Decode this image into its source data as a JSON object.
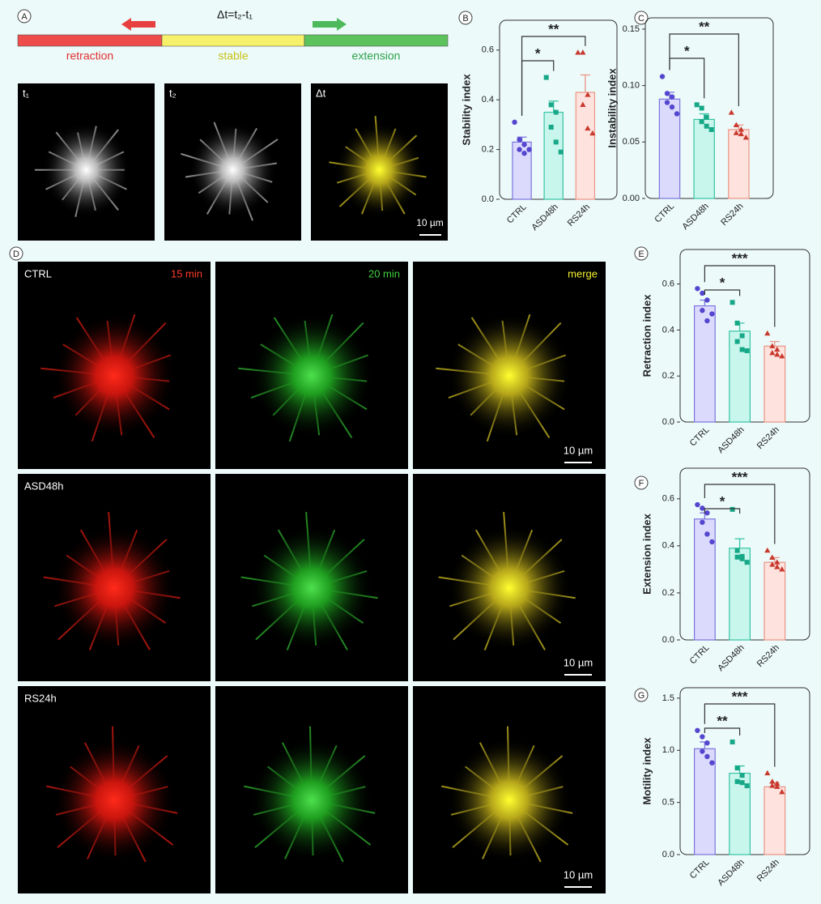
{
  "panel_letters": [
    "A",
    "B",
    "C",
    "D",
    "E",
    "F",
    "G"
  ],
  "panel_a": {
    "formula": "Δt=t₂-t₁",
    "states": [
      "retraction",
      "stable",
      "extension"
    ],
    "frames": [
      "t₁",
      "t₂",
      "Δt"
    ],
    "scale_bar": "10 µm"
  },
  "panel_d": {
    "rows": [
      "CTRL",
      "ASD48h",
      "RS24h"
    ],
    "channels": [
      "15 min",
      "20 min",
      "merge"
    ],
    "scale_bar": "10 µm"
  },
  "chart_data": [
    {
      "type": "bar",
      "ylabel": "Stability index",
      "categories": [
        "CTRL",
        "ASD48h",
        "RS24h"
      ],
      "values": [
        0.23,
        0.35,
        0.43
      ],
      "errors": [
        0.02,
        0.045,
        0.07
      ],
      "points": [
        [
          0.31,
          0.24,
          0.22,
          0.2,
          0.185,
          0.2
        ],
        [
          0.49,
          0.38,
          0.35,
          0.29,
          0.23,
          0.19
        ],
        [
          0.59,
          0.59,
          0.42,
          0.38,
          0.285,
          0.265
        ]
      ],
      "fill_colors": [
        "#dcdafc",
        "#c9f6ec",
        "#fde2dd"
      ],
      "edge_colors": [
        "#7b74dd",
        "#35c4a4",
        "#ec9484"
      ],
      "point_colors": [
        "#5546cf",
        "#17a887",
        "#c8382d"
      ],
      "markers": [
        "circle",
        "square",
        "triangle"
      ],
      "ylim": [
        0,
        0.72
      ],
      "yticks": [
        {
          "value": 0,
          "label": "0.0"
        },
        0.2,
        0.4,
        0.6
      ],
      "significance": [
        {
          "label": "*",
          "between": [
            "CTRL",
            "ASD48h"
          ]
        },
        {
          "label": "**",
          "between": [
            "CTRL",
            "RS24h"
          ]
        }
      ]
    },
    {
      "type": "bar",
      "ylabel": "Instability index",
      "categories": [
        "CTRL",
        "ASD48h",
        "RS24h"
      ],
      "values": [
        0.088,
        0.07,
        0.061
      ],
      "errors": [
        0.006,
        0.005,
        0.004
      ],
      "points": [
        [
          0.108,
          0.093,
          0.09,
          0.085,
          0.081,
          0.075
        ],
        [
          0.083,
          0.08,
          0.072,
          0.068,
          0.064,
          0.061
        ],
        [
          0.076,
          0.065,
          0.061,
          0.058,
          0.057,
          0.054
        ]
      ],
      "fill_colors": [
        "#dcdafc",
        "#c9f6ec",
        "#fde2dd"
      ],
      "edge_colors": [
        "#7b74dd",
        "#35c4a4",
        "#ec9484"
      ],
      "point_colors": [
        "#5546cf",
        "#17a887",
        "#c8382d"
      ],
      "markers": [
        "circle",
        "square",
        "triangle"
      ],
      "ylim": [
        0,
        0.16
      ],
      "yticks": [
        {
          "value": 0,
          "label": "0.00"
        },
        0.05,
        {
          "value": 0.1,
          "label": "0.10"
        },
        0.15
      ],
      "significance": [
        {
          "label": "*",
          "between": [
            "CTRL",
            "ASD48h"
          ]
        },
        {
          "label": "**",
          "between": [
            "CTRL",
            "RS24h"
          ]
        }
      ]
    },
    {
      "type": "bar",
      "ylabel": "Retraction index",
      "categories": [
        "CTRL",
        "ASD48h",
        "RS24h"
      ],
      "values": [
        0.505,
        0.395,
        0.33
      ],
      "errors": [
        0.025,
        0.035,
        0.02
      ],
      "points": [
        [
          0.58,
          0.56,
          0.53,
          0.485,
          0.44,
          0.47
        ],
        [
          0.52,
          0.43,
          0.375,
          0.35,
          0.315,
          0.31
        ],
        [
          0.385,
          0.33,
          0.315,
          0.3,
          0.293,
          0.286
        ]
      ],
      "fill_colors": [
        "#dcdafc",
        "#c9f6ec",
        "#fde2dd"
      ],
      "edge_colors": [
        "#7b74dd",
        "#35c4a4",
        "#ec9484"
      ],
      "point_colors": [
        "#5546cf",
        "#17a887",
        "#c8382d"
      ],
      "markers": [
        "circle",
        "square",
        "triangle"
      ],
      "ylim": [
        0,
        0.75
      ],
      "yticks": [
        {
          "value": 0,
          "label": "0.0"
        },
        0.2,
        0.4,
        0.6
      ],
      "significance": [
        {
          "label": "*",
          "between": [
            "CTRL",
            "ASD48h"
          ]
        },
        {
          "label": "***",
          "between": [
            "CTRL",
            "RS24h"
          ]
        }
      ]
    },
    {
      "type": "bar",
      "ylabel": "Extension index",
      "categories": [
        "CTRL",
        "ASD48h",
        "RS24h"
      ],
      "values": [
        0.514,
        0.39,
        0.33
      ],
      "errors": [
        0.026,
        0.04,
        0.02
      ],
      "points": [
        [
          0.575,
          0.56,
          0.54,
          0.5,
          0.45,
          0.417
        ],
        [
          0.555,
          0.38,
          0.355,
          0.352,
          0.345,
          0.33
        ],
        [
          0.38,
          0.35,
          0.33,
          0.32,
          0.31,
          0.3
        ]
      ],
      "fill_colors": [
        "#dcdafc",
        "#c9f6ec",
        "#fde2dd"
      ],
      "edge_colors": [
        "#7b74dd",
        "#35c4a4",
        "#ec9484"
      ],
      "point_colors": [
        "#5546cf",
        "#17a887",
        "#c8382d"
      ],
      "markers": [
        "circle",
        "square",
        "triangle"
      ],
      "ylim": [
        0,
        0.73
      ],
      "yticks": [
        {
          "value": 0,
          "label": "0.0"
        },
        0.2,
        0.4,
        0.6
      ],
      "significance": [
        {
          "label": "*",
          "between": [
            "CTRL",
            "ASD48h"
          ]
        },
        {
          "label": "***",
          "between": [
            "CTRL",
            "RS24h"
          ]
        }
      ]
    },
    {
      "type": "bar",
      "ylabel": "Motility index",
      "categories": [
        "CTRL",
        "ASD48h",
        "RS24h"
      ],
      "values": [
        1.015,
        0.78,
        0.65
      ],
      "errors": [
        0.065,
        0.07,
        0.04
      ],
      "points": [
        [
          1.19,
          1.13,
          1.07,
          0.99,
          0.94,
          0.88
        ],
        [
          1.08,
          0.83,
          0.76,
          0.7,
          0.69,
          0.66
        ],
        [
          0.78,
          0.7,
          0.68,
          0.66,
          0.65,
          0.6
        ]
      ],
      "fill_colors": [
        "#dcdafc",
        "#c9f6ec",
        "#fde2dd"
      ],
      "edge_colors": [
        "#7b74dd",
        "#35c4a4",
        "#ec9484"
      ],
      "point_colors": [
        "#5546cf",
        "#17a887",
        "#c8382d"
      ],
      "markers": [
        "circle",
        "square",
        "triangle"
      ],
      "ylim": [
        0,
        1.6
      ],
      "yticks": [
        {
          "value": 0,
          "label": "0.0"
        },
        0.5,
        {
          "value": 1,
          "label": "1.0"
        },
        1.5
      ],
      "significance": [
        {
          "label": "**",
          "between": [
            "CTRL",
            "ASD48h"
          ]
        },
        {
          "label": "***",
          "between": [
            "CTRL",
            "RS24h"
          ]
        }
      ]
    }
  ]
}
